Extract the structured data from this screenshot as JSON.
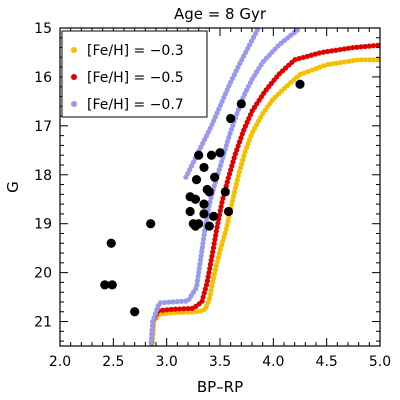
{
  "chart_data": {
    "type": "scatter",
    "title": "Age = 8 Gyr",
    "xlabel": "BP–RP",
    "ylabel": "G",
    "xlim": [
      2.0,
      5.0
    ],
    "ylim": [
      21.5,
      15.0
    ],
    "y_inverted": true,
    "grid": false,
    "legend_position": "top-left",
    "x_ticks": [
      {
        "value": 2.0,
        "label": "2.0"
      },
      {
        "value": 2.5,
        "label": "2.5"
      },
      {
        "value": 3.0,
        "label": "3.0"
      },
      {
        "value": 3.5,
        "label": "3.5"
      },
      {
        "value": 4.0,
        "label": "4.0"
      },
      {
        "value": 4.5,
        "label": "4.5"
      },
      {
        "value": 5.0,
        "label": "5.0"
      }
    ],
    "y_ticks": [
      {
        "value": 15,
        "label": "15"
      },
      {
        "value": 16,
        "label": "16"
      },
      {
        "value": 17,
        "label": "17"
      },
      {
        "value": 18,
        "label": "18"
      },
      {
        "value": 19,
        "label": "19"
      },
      {
        "value": 20,
        "label": "20"
      },
      {
        "value": 21,
        "label": "21"
      }
    ],
    "series": [
      {
        "name": "[Fe/H] = −0.3",
        "color": "#f5c000",
        "knots": [
          [
            2.86,
            21.6
          ],
          [
            2.88,
            21.0
          ],
          [
            2.93,
            20.85
          ],
          [
            3.05,
            20.82
          ],
          [
            3.3,
            20.8
          ],
          [
            3.36,
            20.75
          ],
          [
            3.4,
            20.55
          ],
          [
            3.45,
            20.0
          ],
          [
            3.5,
            19.55
          ],
          [
            3.56,
            19.1
          ],
          [
            3.62,
            18.5
          ],
          [
            3.68,
            17.95
          ],
          [
            3.74,
            17.5
          ],
          [
            3.8,
            17.15
          ],
          [
            3.9,
            16.75
          ],
          [
            4.0,
            16.45
          ],
          [
            4.12,
            16.2
          ],
          [
            4.25,
            15.95
          ],
          [
            4.5,
            15.75
          ],
          [
            4.8,
            15.65
          ],
          [
            5.0,
            15.65
          ]
        ]
      },
      {
        "name": "[Fe/H] = −0.5",
        "color": "#e00000",
        "knots": [
          [
            2.85,
            21.6
          ],
          [
            2.87,
            21.0
          ],
          [
            2.92,
            20.78
          ],
          [
            3.05,
            20.75
          ],
          [
            3.25,
            20.73
          ],
          [
            3.33,
            20.6
          ],
          [
            3.38,
            20.2
          ],
          [
            3.43,
            19.6
          ],
          [
            3.47,
            19.1
          ],
          [
            3.52,
            18.55
          ],
          [
            3.58,
            18.05
          ],
          [
            3.64,
            17.6
          ],
          [
            3.72,
            17.1
          ],
          [
            3.8,
            16.7
          ],
          [
            3.92,
            16.3
          ],
          [
            4.05,
            15.95
          ],
          [
            4.2,
            15.65
          ],
          [
            4.45,
            15.5
          ],
          [
            4.75,
            15.4
          ],
          [
            5.0,
            15.35
          ]
        ]
      },
      {
        "name": "[Fe/H] = −0.7",
        "color": "#9999ee",
        "knots": [
          [
            2.85,
            21.6
          ],
          [
            2.87,
            21.0
          ],
          [
            2.93,
            20.62
          ],
          [
            3.05,
            20.6
          ],
          [
            3.2,
            20.58
          ],
          [
            3.28,
            20.3
          ],
          [
            3.32,
            19.7
          ],
          [
            3.36,
            19.1
          ],
          [
            3.4,
            18.6
          ],
          [
            3.45,
            18.2
          ],
          [
            3.52,
            17.7
          ],
          [
            3.58,
            17.25
          ],
          [
            3.65,
            16.8
          ],
          [
            3.72,
            16.4
          ],
          [
            3.8,
            16.05
          ],
          [
            3.9,
            15.7
          ],
          [
            4.05,
            15.35
          ],
          [
            4.25,
            15.0
          ]
        ]
      },
      {
        "name": "",
        "color": "#9999ee",
        "knots": [
          [
            3.18,
            18.05
          ],
          [
            3.26,
            17.7
          ],
          [
            3.34,
            17.35
          ],
          [
            3.42,
            17.0
          ],
          [
            3.5,
            16.6
          ],
          [
            3.58,
            16.2
          ],
          [
            3.68,
            15.75
          ],
          [
            3.8,
            15.25
          ],
          [
            3.86,
            15.0
          ]
        ]
      }
    ],
    "observed": {
      "color": "#000000",
      "points": [
        [
          4.25,
          16.15
        ],
        [
          3.7,
          16.55
        ],
        [
          3.6,
          16.85
        ],
        [
          3.5,
          17.55
        ],
        [
          3.42,
          17.6
        ],
        [
          3.3,
          17.6
        ],
        [
          3.35,
          17.85
        ],
        [
          3.45,
          18.05
        ],
        [
          3.28,
          18.1
        ],
        [
          3.38,
          18.3
        ],
        [
          3.4,
          18.35
        ],
        [
          3.55,
          18.35
        ],
        [
          3.22,
          18.45
        ],
        [
          3.27,
          18.5
        ],
        [
          3.35,
          18.6
        ],
        [
          3.22,
          18.75
        ],
        [
          3.35,
          18.8
        ],
        [
          3.58,
          18.75
        ],
        [
          3.44,
          18.85
        ],
        [
          3.25,
          19.0
        ],
        [
          3.3,
          19.0
        ],
        [
          3.4,
          19.05
        ],
        [
          3.27,
          19.05
        ],
        [
          2.85,
          19.0
        ],
        [
          2.48,
          19.4
        ],
        [
          2.42,
          20.25
        ],
        [
          2.49,
          20.25
        ],
        [
          2.7,
          20.8
        ]
      ]
    }
  }
}
